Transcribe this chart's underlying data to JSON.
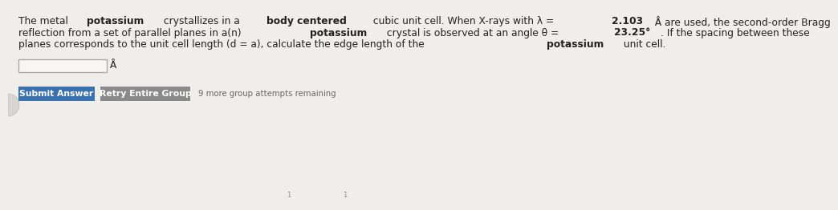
{
  "background_color": "#f0eeeb",
  "lines": [
    "The metal **potassium** crystallizes in a **body centered** cubic unit cell. When X-rays with λ = **2.103** Å are used, the second-order Bragg",
    "reflection from a set of parallel planes in a(n) **potassium** crystal is observed at an angle θ = **23.25°**. If the spacing between these",
    "planes corresponds to the unit cell length (d = a), calculate the edge length of the **potassium** unit cell."
  ],
  "angstrom_label": "Å",
  "submit_button_label": "Submit Answer",
  "submit_button_color": "#3a72b0",
  "submit_button_text_color": "#ffffff",
  "retry_button_label": "Retry Entire Group",
  "retry_button_color": "#8a8a8a",
  "retry_button_text_color": "#ffffff",
  "attempts_text": "9 more group attempts remaining",
  "font_size": 8.8,
  "text_color": "#222222",
  "small_tick_color": "#888888"
}
